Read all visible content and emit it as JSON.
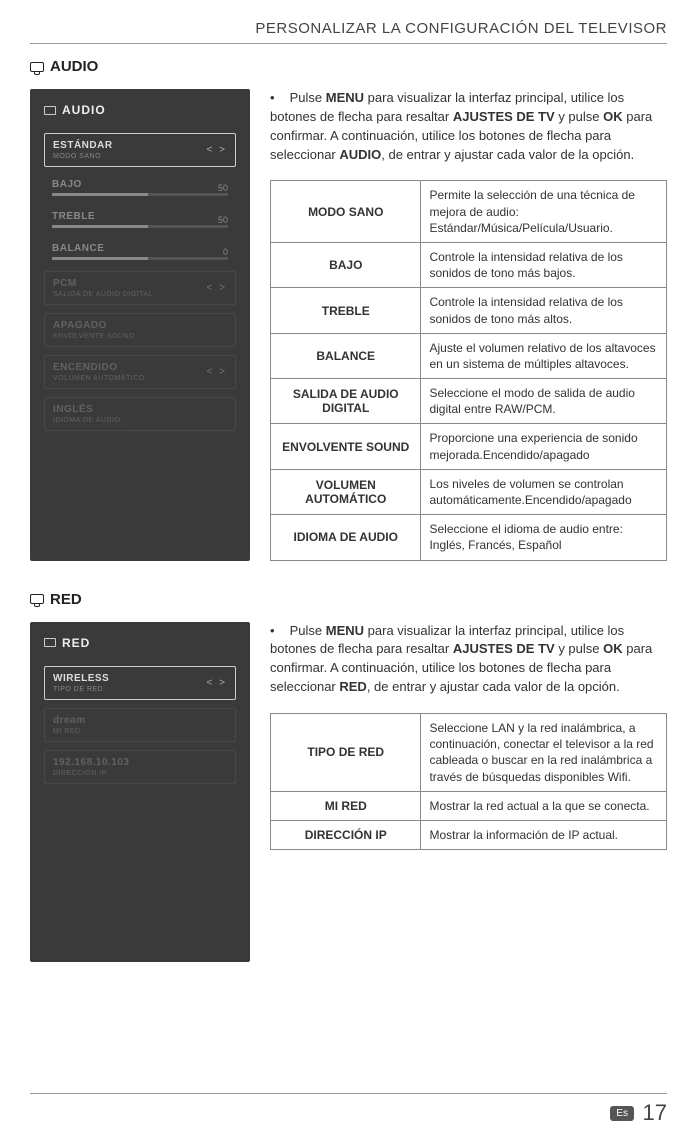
{
  "header": {
    "title": "PERSONALIZAR LA CONFIGURACIÓN DEL TELEVISOR"
  },
  "footer": {
    "lang": "Es",
    "page": "17"
  },
  "sections": {
    "audio": {
      "heading": "AUDIO",
      "mock": {
        "title": "AUDIO",
        "rows": [
          {
            "label": "ESTÁNDAR",
            "sub": "MODO SANO",
            "arrows": "<  >",
            "selected": true
          },
          {
            "label": "BAJO",
            "val": "50",
            "bar": 50,
            "plain": true
          },
          {
            "label": "TREBLE",
            "val": "50",
            "bar": 50,
            "plain": true
          },
          {
            "label": "BALANCE",
            "val": "0",
            "bar": 50,
            "plain": true
          },
          {
            "label": "PCM",
            "sub": "SALIDA DE AUDIO DIGITAL",
            "arrows": "<  >",
            "dim": true
          },
          {
            "label": "APAGADO",
            "sub": "ENVOLVENTE SOUND",
            "arrows": "",
            "dim": true
          },
          {
            "label": "ENCENDIDO",
            "sub": "VOLUMEN AUTOMÁTICO",
            "arrows": "<  >",
            "dim": true
          },
          {
            "label": "INGLÉS",
            "sub": "IDIOMA DE AUDIO",
            "arrows": "",
            "dim": true
          }
        ]
      },
      "instruction_parts": {
        "p1": "Pulse ",
        "b1": "MENU",
        "p2": " para visualizar la interfaz principal, utilice los botones de flecha para resaltar ",
        "b2": "AJUSTES DE TV",
        "p3": " y pulse ",
        "b3": "OK",
        "p4": " para confirmar. A continuación, utilice los botones de flecha para seleccionar ",
        "b4": "AUDIO",
        "p5": ", de entrar y ajustar cada valor de la opción."
      },
      "table": [
        {
          "key": "MODO SANO",
          "val": "Permite la selección de una técnica de mejora de audio: Estándar/Música/Película/Usuario."
        },
        {
          "key": "BAJO",
          "val": "Controle la intensidad relativa de los sonidos de tono más bajos."
        },
        {
          "key": "TREBLE",
          "val": "Controle la intensidad relativa de los sonidos de tono más altos."
        },
        {
          "key": "BALANCE",
          "val": "Ajuste el volumen relativo de los altavoces en un sistema de múltiples altavoces."
        },
        {
          "key": "SALIDA DE AUDIO DIGITAL",
          "val": "Seleccione el modo de salida de audio digital entre RAW/PCM."
        },
        {
          "key": "ENVOLVENTE SOUND",
          "val": "Proporcione una experiencia de sonido mejorada.Encendido/apagado"
        },
        {
          "key": "VOLUMEN AUTOMÁTICO",
          "val": "Los niveles de volumen se controlan automáticamente.Encendido/apagado"
        },
        {
          "key": "IDIOMA DE AUDIO",
          "val": "Seleccione el idioma de audio entre: Inglés, Francés, Español"
        }
      ]
    },
    "red": {
      "heading": "RED",
      "mock": {
        "title": "RED",
        "rows": [
          {
            "label": "WIRELESS",
            "sub": "TIPO DE RED",
            "arrows": "<  >",
            "selected": true
          },
          {
            "label": "dream",
            "sub": "MI RED",
            "dim": true
          },
          {
            "label": "192.168.10.103",
            "sub": "DIRECCIÓN IP",
            "dim": true
          }
        ]
      },
      "instruction_parts": {
        "p1": "Pulse ",
        "b1": "MENU",
        "p2": " para visualizar la interfaz principal, utilice los botones de flecha para resaltar ",
        "b2": "AJUSTES DE TV",
        "p3": " y pulse ",
        "b3": "OK",
        "p4": " para confirmar. A continuación, utilice los botones de flecha para seleccionar ",
        "b4": "RED",
        "p5": ", de entrar y ajustar cada valor de la opción."
      },
      "table": [
        {
          "key": "TIPO DE RED",
          "val": "Seleccione LAN y la red inalámbrica, a continuación, conectar el televisor a la red cableada o buscar en la red inalámbrica a través de búsquedas disponibles Wifi."
        },
        {
          "key": "MI RED",
          "val": "Mostrar la red actual a la que se conecta."
        },
        {
          "key": "DIRECCIÓN IP",
          "val": "Mostrar la información de IP actual."
        }
      ]
    }
  }
}
